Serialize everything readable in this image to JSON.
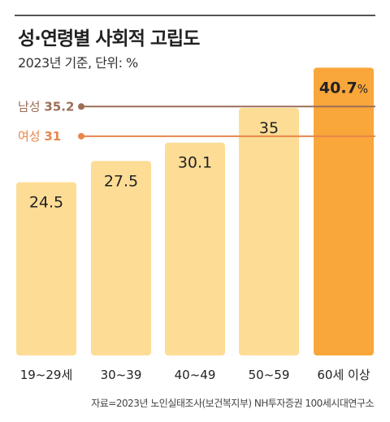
{
  "header": {
    "title": "성·연령별 사회적 고립도",
    "subtitle": "2023년 기준, 단위: %"
  },
  "footer": {
    "source": "자료=2023년 노인실태조사(보건복지부) NH투자증권 100세시대연구소"
  },
  "colors": {
    "bar": "#FDDD96",
    "highlight_bar": "#F9A63A",
    "male_line": "#9C6E57",
    "female_line": "#E8864B"
  },
  "chart_data": {
    "type": "bar",
    "categories": [
      "19~29세",
      "30~39",
      "40~49",
      "50~59",
      "60세 이상"
    ],
    "values": [
      24.5,
      27.5,
      30.1,
      35,
      40.7
    ],
    "value_labels": [
      "24.5",
      "27.5",
      "30.1",
      "35",
      "40.7"
    ],
    "highlight_index": 4,
    "highlight_suffix": "%",
    "ylim": [
      0,
      42
    ],
    "reference_lines": [
      {
        "name": "남성",
        "value": 35.2,
        "label": "35.2"
      },
      {
        "name": "여성",
        "value": 31,
        "label": "31"
      }
    ],
    "title": "성·연령별 사회적 고립도",
    "xlabel": "",
    "ylabel": ""
  }
}
